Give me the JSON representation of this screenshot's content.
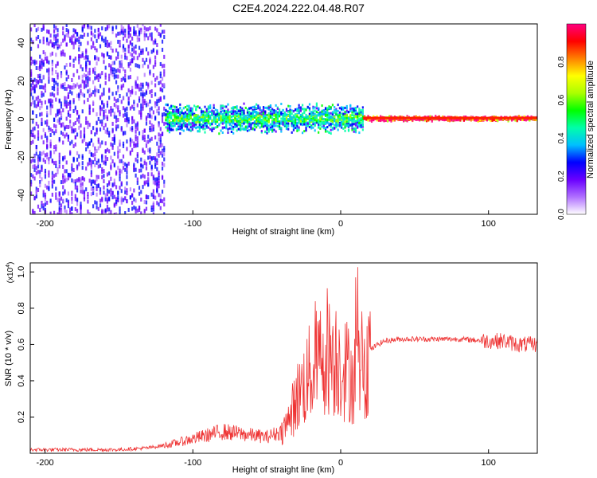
{
  "title": "C2E4.2024.222.04.48.R07",
  "chart_data": [
    {
      "type": "heatmap",
      "xlabel": "Height of straight line (km)",
      "ylabel": "Frequency (Hz)",
      "xlim": [
        -210,
        133
      ],
      "ylim": [
        -50,
        50
      ],
      "xticks": [
        -200,
        -100,
        0,
        100
      ],
      "yticks": [
        -40,
        -20,
        0,
        20,
        40
      ],
      "colorbar": {
        "label": "Normalized spectral amplitude",
        "range": [
          0,
          1
        ],
        "ticks": [
          "0.0",
          "0.2",
          "0.4",
          "0.6",
          "0.8"
        ],
        "colors": [
          "#ffffff",
          "#b070ff",
          "#6a00ff",
          "#0000ff",
          "#00bfff",
          "#00ffaa",
          "#00ff00",
          "#aaff00",
          "#ffff00",
          "#ff8000",
          "#ff0000",
          "#ff0080"
        ]
      },
      "regions": [
        {
          "x": [
            -210,
            -120
          ],
          "description_level": 0.22,
          "freq_spread": 50
        },
        {
          "x": [
            -120,
            15
          ],
          "description_level": 0.4,
          "freq_spread": 8
        },
        {
          "x": [
            15,
            133
          ],
          "description_level": 0.9,
          "freq_spread": 1.5
        }
      ]
    },
    {
      "type": "line",
      "xlabel": "Height of straight line (km)",
      "ylabel": "SNR (10 * v/v)",
      "y_multiplier": "(x10",
      "y_exponent": "4",
      "xlim": [
        -210,
        133
      ],
      "ylim": [
        0,
        1.05
      ],
      "xticks": [
        -200,
        -100,
        0,
        100
      ],
      "yticks": [
        0.2,
        0.4,
        0.6,
        0.8,
        1.0
      ],
      "series": [
        {
          "color": "#ee3333",
          "envelope_x": [
            -210,
            -180,
            -150,
            -130,
            -115,
            -100,
            -90,
            -80,
            -70,
            -60,
            -50,
            -40,
            -35,
            -30,
            -25,
            -20,
            -15,
            -10,
            -5,
            0,
            5,
            10,
            15,
            20,
            25,
            30,
            40,
            60,
            80,
            100,
            110,
            120,
            133
          ],
          "envelope_y": [
            0.02,
            0.02,
            0.02,
            0.03,
            0.05,
            0.08,
            0.1,
            0.12,
            0.11,
            0.1,
            0.09,
            0.12,
            0.18,
            0.3,
            0.38,
            0.45,
            0.5,
            0.58,
            0.55,
            0.5,
            0.45,
            0.42,
            0.5,
            0.57,
            0.6,
            0.62,
            0.63,
            0.63,
            0.63,
            0.62,
            0.62,
            0.6,
            0.6
          ]
        }
      ]
    }
  ]
}
